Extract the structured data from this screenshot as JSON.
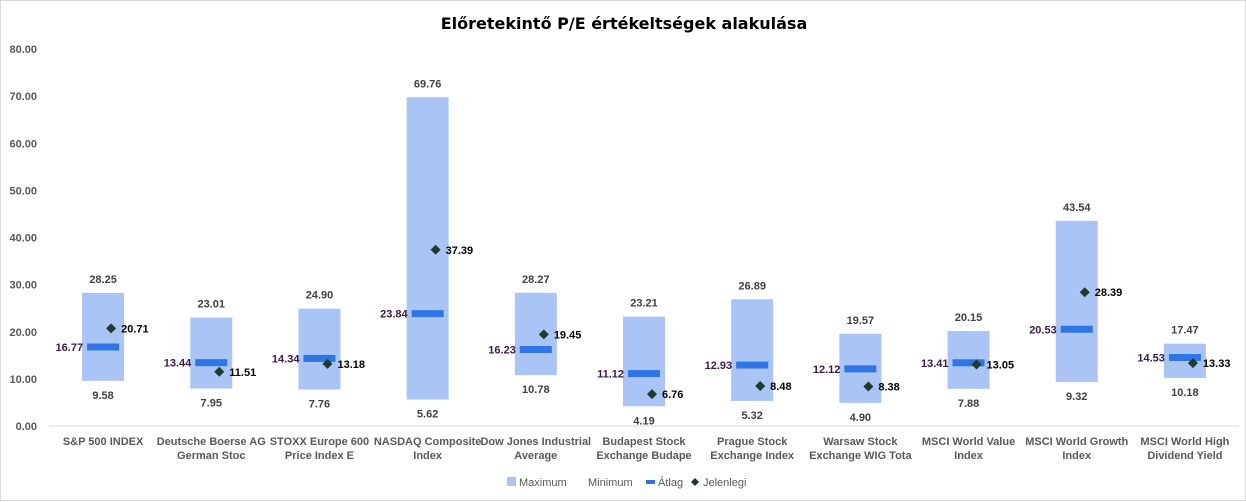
{
  "chart_data": {
    "type": "bar",
    "title": "Előretekintő P/E értékeltségek alakulása",
    "xlabel": "",
    "ylabel": "",
    "ylim": [
      0,
      80
    ],
    "yticks": [
      "0.00",
      "10.00",
      "20.00",
      "30.00",
      "40.00",
      "50.00",
      "60.00",
      "70.00",
      "80.00"
    ],
    "grid": false,
    "legend_position": "bottom",
    "categories": [
      [
        "S&P 500 INDEX"
      ],
      [
        "Deutsche Boerse AG",
        "German Stoc"
      ],
      [
        "STOXX Europe 600",
        "Price Index E"
      ],
      [
        "NASDAQ Composite",
        "Index"
      ],
      [
        "Dow Jones Industrial",
        "Average"
      ],
      [
        "Budapest Stock",
        "Exchange Budape"
      ],
      [
        "Prague Stock",
        "Exchange Index"
      ],
      [
        "Warsaw Stock",
        "Exchange WIG Tota"
      ],
      [
        "MSCI World Value",
        "Index"
      ],
      [
        "MSCI World Growth",
        "Index"
      ],
      [
        "MSCI World High",
        "Dividend Yield"
      ]
    ],
    "series": [
      {
        "name": "Maximum",
        "color": "#a9c4f5",
        "values": [
          28.25,
          23.01,
          24.9,
          69.76,
          28.27,
          23.21,
          26.89,
          19.57,
          20.15,
          43.54,
          17.47
        ]
      },
      {
        "name": "Minimum",
        "color": "#ffffff",
        "values": [
          9.58,
          7.95,
          7.76,
          5.62,
          10.78,
          4.19,
          5.32,
          4.9,
          7.88,
          9.32,
          10.18
        ]
      },
      {
        "name": "Átlag",
        "color": "#2e75e6",
        "values": [
          16.77,
          13.44,
          14.34,
          23.84,
          16.23,
          11.12,
          12.93,
          12.12,
          13.41,
          20.53,
          14.53
        ]
      },
      {
        "name": "Jelenlegi",
        "color": "#1e3b2c",
        "values": [
          20.71,
          11.51,
          13.18,
          37.39,
          19.45,
          6.76,
          8.48,
          8.38,
          13.05,
          28.39,
          13.33
        ]
      }
    ]
  }
}
